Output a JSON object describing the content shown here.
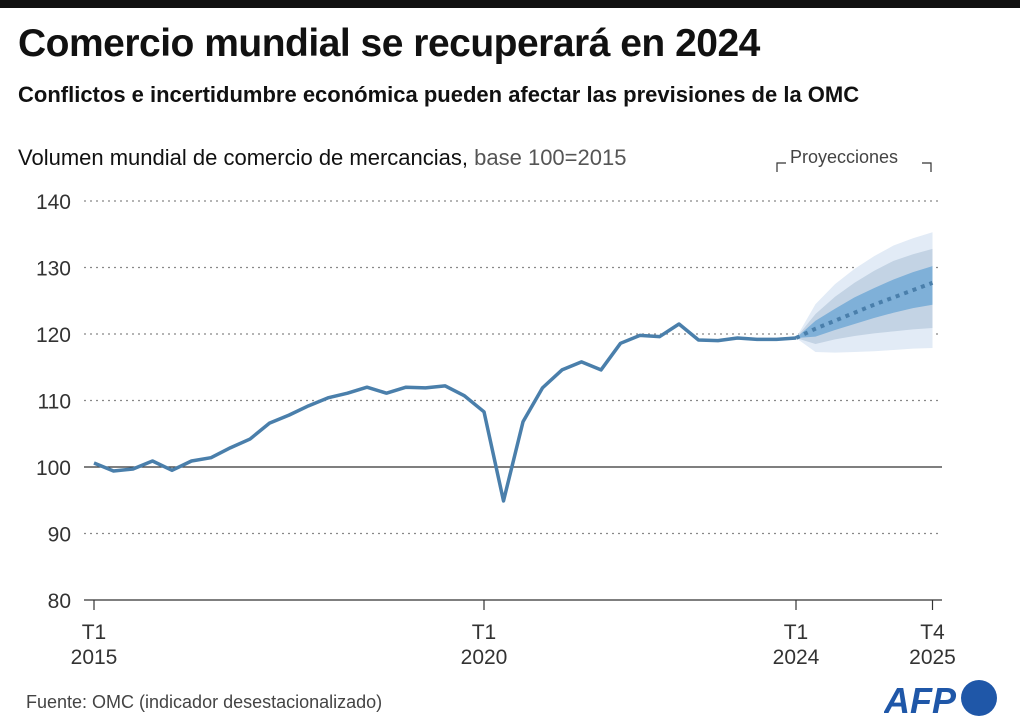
{
  "header": {
    "title": "Comercio mundial se recuperará en 2024",
    "subtitle": "Conflictos e incertidumbre económica pueden afectar las previsiones de la OMC"
  },
  "chart_label": {
    "main": "Volumen mundial de comercio de mercancias,",
    "unit": "base 100=2015"
  },
  "projection_label": "Proyecciones",
  "source": "Fuente: OMC (indicador desestacionalizado)",
  "logo_text": "AFP",
  "colors": {
    "line": "#4a7fab",
    "band_inner": "#7fb0d8",
    "band_mid": "#c3d3e4",
    "band_outer": "#e2ebf6",
    "logo": "#1f57a8"
  },
  "chart_data": {
    "type": "line",
    "ylim": [
      80,
      140
    ],
    "yticks": [
      "80",
      "90",
      "100",
      "110",
      "120",
      "130",
      "140"
    ],
    "xticks": [
      {
        "quarter": "2015T1",
        "label1": "T1",
        "label2": "2015"
      },
      {
        "quarter": "2020T1",
        "label1": "T1",
        "label2": "2020"
      },
      {
        "quarter": "2024T1",
        "label1": "T1",
        "label2": "2024"
      },
      {
        "quarter": "2025T4",
        "label1": "T4",
        "label2": "2025"
      }
    ],
    "grid": "horizontal dotted",
    "historical": {
      "quarters": [
        "2015T1",
        "2015T2",
        "2015T3",
        "2015T4",
        "2016T1",
        "2016T2",
        "2016T3",
        "2016T4",
        "2017T1",
        "2017T2",
        "2017T3",
        "2017T4",
        "2018T1",
        "2018T2",
        "2018T3",
        "2018T4",
        "2019T1",
        "2019T2",
        "2019T3",
        "2019T4",
        "2020T1",
        "2020T2",
        "2020T3",
        "2020T4",
        "2021T1",
        "2021T2",
        "2021T3",
        "2021T4",
        "2022T1",
        "2022T2",
        "2022T3",
        "2022T4",
        "2023T1",
        "2023T2",
        "2023T3",
        "2023T4",
        "2024T1"
      ],
      "values": [
        100.6,
        99.4,
        99.7,
        100.9,
        99.5,
        100.9,
        101.4,
        102.9,
        104.2,
        106.6,
        107.8,
        109.2,
        110.4,
        111.1,
        112.0,
        111.1,
        112.0,
        111.9,
        112.2,
        110.7,
        108.3,
        94.9,
        106.8,
        111.9,
        114.6,
        115.8,
        114.6,
        118.6,
        119.8,
        119.6,
        121.5,
        119.1,
        119.0,
        119.4,
        119.2,
        119.2,
        119.4
      ]
    },
    "projection": {
      "quarters": [
        "2024T1",
        "2024T2",
        "2024T3",
        "2024T4",
        "2025T1",
        "2025T2",
        "2025T3",
        "2025T4"
      ],
      "median": [
        119.4,
        120.8,
        122.0,
        123.2,
        124.4,
        125.5,
        126.6,
        127.7
      ],
      "outer_upper": [
        119.4,
        124.5,
        127.5,
        129.8,
        131.7,
        133.3,
        134.4,
        135.3
      ],
      "outer_lower": [
        119.4,
        117.3,
        117.2,
        117.3,
        117.4,
        117.6,
        117.8,
        117.9
      ],
      "mid_upper": [
        119.4,
        123.0,
        125.6,
        127.7,
        129.5,
        131.0,
        132.0,
        132.8
      ],
      "mid_lower": [
        119.4,
        118.5,
        119.2,
        119.7,
        120.1,
        120.4,
        120.7,
        120.9
      ],
      "inner_upper": [
        119.4,
        122.0,
        123.8,
        125.5,
        126.9,
        128.2,
        129.3,
        130.2
      ],
      "inner_lower": [
        119.4,
        119.6,
        120.6,
        121.5,
        122.4,
        123.2,
        123.9,
        124.4
      ]
    }
  }
}
